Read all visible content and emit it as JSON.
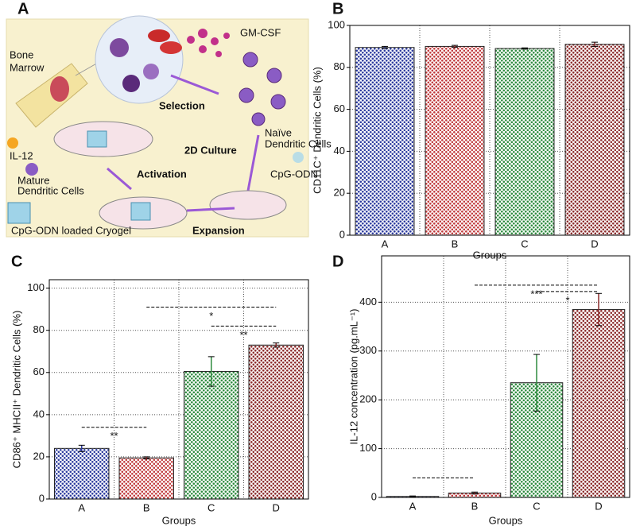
{
  "diagram": {
    "panel": "A",
    "bone_marrow": [
      "Bone",
      "Marrow"
    ],
    "gm_csf": "GM-CSF",
    "selection": "Selection",
    "culture": "2D Culture",
    "naive_cells": [
      "Naïve",
      "Dendritic Cells"
    ],
    "cpg": "CpG-ODN",
    "activation": "Activation",
    "expansion": "Expansion",
    "il12": "IL-12",
    "mature_cells": [
      "Mature",
      "Dendritic Cells"
    ],
    "cryogel": "CpG-ODN loaded Cryogel"
  },
  "chart_data": [
    {
      "type": "bar",
      "panel": "B",
      "ylabel": "CD11C⁺ Dendritic Cells (%)",
      "xlabel": "Groups",
      "categories": [
        "A",
        "B",
        "C",
        "D"
      ],
      "values": [
        89.5,
        90,
        89,
        91
      ],
      "errors": [
        0.5,
        0.5,
        0.3,
        1
      ],
      "colors": [
        "#2b3a9e",
        "#c0393b",
        "#2e8b3e",
        "#8b2a2a"
      ],
      "ylim": [
        0,
        100
      ],
      "yticks": [
        0,
        20,
        40,
        60,
        80,
        100
      ],
      "grid": true,
      "annotations": []
    },
    {
      "type": "bar",
      "panel": "C",
      "ylabel": "CD86⁺ MHCII⁺ Dendritic Cells (%)",
      "xlabel": "Groups",
      "categories": [
        "A",
        "B",
        "C",
        "D"
      ],
      "values": [
        24,
        19.5,
        60.5,
        73
      ],
      "errors": [
        1.5,
        0.5,
        7,
        1
      ],
      "colors": [
        "#2b3a9e",
        "#c0393b",
        "#2e8b3e",
        "#8b2a2a"
      ],
      "ylim": [
        0,
        104
      ],
      "yticks": [
        0,
        20,
        40,
        60,
        80,
        100
      ],
      "grid": true,
      "annotations": [
        {
          "text": "**",
          "between": [
            "A",
            "B"
          ],
          "y": 34
        },
        {
          "text": "*",
          "between": [
            "B",
            "D"
          ],
          "y": 91
        },
        {
          "text": "**",
          "between": [
            "C",
            "D"
          ],
          "y": 82
        }
      ]
    },
    {
      "type": "bar",
      "panel": "D",
      "ylabel": "IL-12 concentration (pg.mL⁻¹)",
      "xlabel": "Groups",
      "categories": [
        "A",
        "B",
        "C",
        "D"
      ],
      "values": [
        2,
        9,
        235,
        385
      ],
      "errors": [
        1,
        2,
        58,
        33
      ],
      "colors": [
        "#2b3a9e",
        "#c0393b",
        "#2e8b3e",
        "#8b2a2a"
      ],
      "ylim": [
        0,
        495
      ],
      "yticks": [
        0,
        100,
        200,
        300,
        400
      ],
      "grid": true,
      "annotations": [
        {
          "text": "",
          "between": [
            "A",
            "B"
          ],
          "y": 40
        },
        {
          "text": "***",
          "between": [
            "B",
            "D"
          ],
          "y": 435
        },
        {
          "text": "*",
          "between": [
            "C",
            "D"
          ],
          "y": 422
        }
      ]
    }
  ]
}
